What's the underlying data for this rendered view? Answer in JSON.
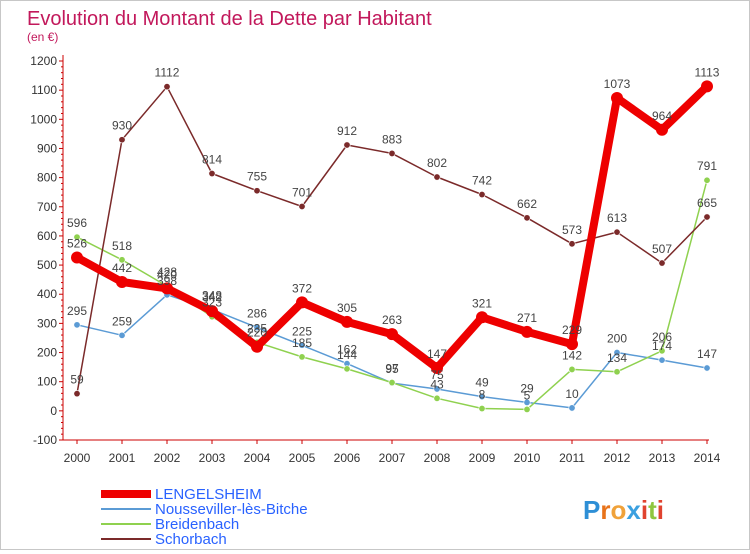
{
  "chart_data": {
    "type": "line",
    "title": "Evolution du Montant de la Dette par Habitant",
    "subtitle": "(en €)",
    "xlabel": "",
    "ylabel": "",
    "ylim": [
      -100,
      1200
    ],
    "ytick_step": 100,
    "grid": false,
    "legend_position": "bottom-left",
    "x": [
      "2000",
      "2001",
      "2002",
      "2003",
      "2004",
      "2005",
      "2006",
      "2007",
      "2008",
      "2009",
      "2010",
      "2011",
      "2012",
      "2013",
      "2014"
    ],
    "series": [
      {
        "name": "LENGELSHEIM",
        "color": "#ee0000",
        "values": [
          526,
          442,
          420,
          342,
          220,
          372,
          305,
          263,
          147,
          321,
          271,
          229,
          1073,
          964,
          1113
        ]
      },
      {
        "name": "Nousseviller-lès-Bitche",
        "color": "#5b9bd5",
        "values": [
          295,
          259,
          398,
          348,
          286,
          225,
          162,
          95,
          75,
          49,
          29,
          10,
          200,
          174,
          147
        ]
      },
      {
        "name": "Breidenbach",
        "color": "#8fd14f",
        "values": [
          596,
          518,
          428,
          323,
          235,
          185,
          144,
          97,
          43,
          8,
          5,
          142,
          134,
          206,
          791
        ]
      },
      {
        "name": "Schorbach",
        "color": "#7b2a2a",
        "values": [
          59,
          930,
          1112,
          814,
          755,
          701,
          912,
          883,
          802,
          742,
          662,
          573,
          613,
          507,
          665
        ]
      }
    ],
    "data_labels": [
      [
        "526",
        "442",
        "420",
        "342",
        "220",
        "372",
        "305",
        "263",
        "147",
        "321",
        "271",
        "229",
        "1073",
        "964",
        "1113"
      ],
      [
        "295",
        "259",
        "398",
        "348",
        "286",
        "225",
        "162",
        "95",
        "75",
        "49",
        "29",
        "10",
        "200",
        "174",
        "147"
      ],
      [
        "596",
        "518",
        "428",
        "323",
        "235",
        "185",
        "144",
        "97",
        "43",
        "8",
        "5",
        "142",
        "134",
        "206",
        "791"
      ],
      [
        "59",
        "930",
        "1112",
        "814",
        "755",
        "701",
        "912",
        "883",
        "802",
        "742",
        "662",
        "573",
        "613",
        "507",
        "665"
      ]
    ]
  },
  "logo": {
    "text": "Proxiti"
  }
}
